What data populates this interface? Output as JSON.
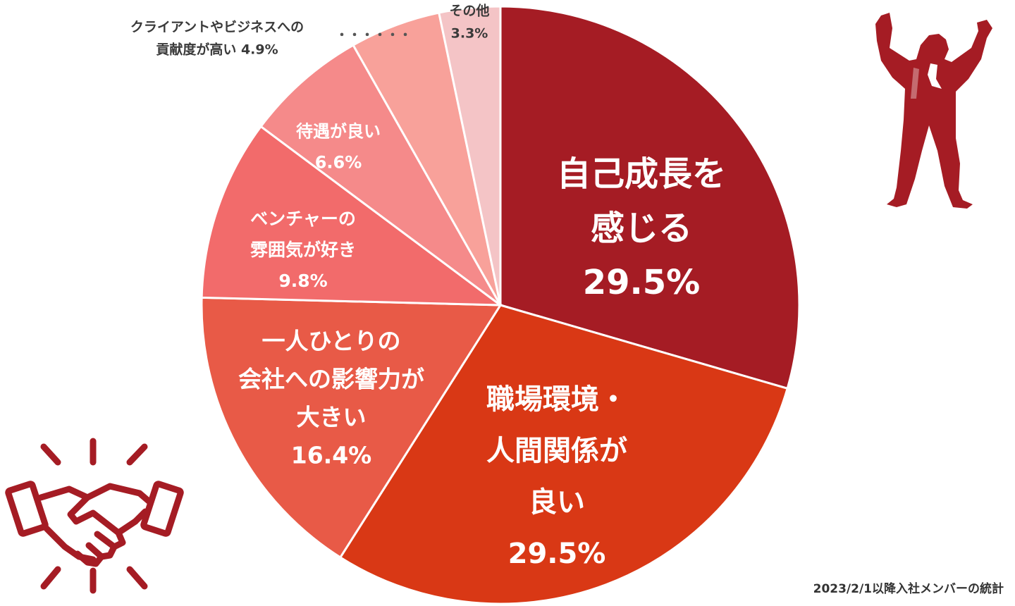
{
  "colors": {
    "primary": "#a51c24",
    "slices": [
      "#a51c24",
      "#d93815",
      "#e85a47",
      "#f26b6b",
      "#f58a8a",
      "#f8a19a",
      "#f4c4c6"
    ],
    "dots": "#555555"
  },
  "icons": {
    "top_right": "celebrating-person-icon",
    "bottom_left": "handshake-icon"
  },
  "footnote": "2023/2/1以降入社メンバーの統計",
  "chart_data": {
    "type": "pie",
    "start": "12 o'clock",
    "direction": "clockwise",
    "slices": [
      {
        "lines": [
          "自己成長を",
          "感じる"
        ],
        "value_text": "29.5%",
        "value": 29.5
      },
      {
        "lines": [
          "職場環境・",
          "人間関係が",
          "良い"
        ],
        "value_text": "29.5%",
        "value": 29.5
      },
      {
        "lines": [
          "一人ひとりの",
          "会社への影響力が",
          "大きい"
        ],
        "value_text": "16.4%",
        "value": 16.4
      },
      {
        "lines": [
          "ベンチャーの",
          "雰囲気が好き"
        ],
        "value_text": "9.8%",
        "value": 9.8
      },
      {
        "lines": [
          "待遇が良い"
        ],
        "value_text": "6.6%",
        "value": 6.6
      },
      {
        "lines": [
          "クライアントやビジネスへの",
          "貢献度が高い"
        ],
        "value_text": "4.9%",
        "value": 4.9
      },
      {
        "lines": [
          "その他"
        ],
        "value_text": "3.3%",
        "value": 3.3
      }
    ],
    "leader_dots": "・・・・・・"
  }
}
